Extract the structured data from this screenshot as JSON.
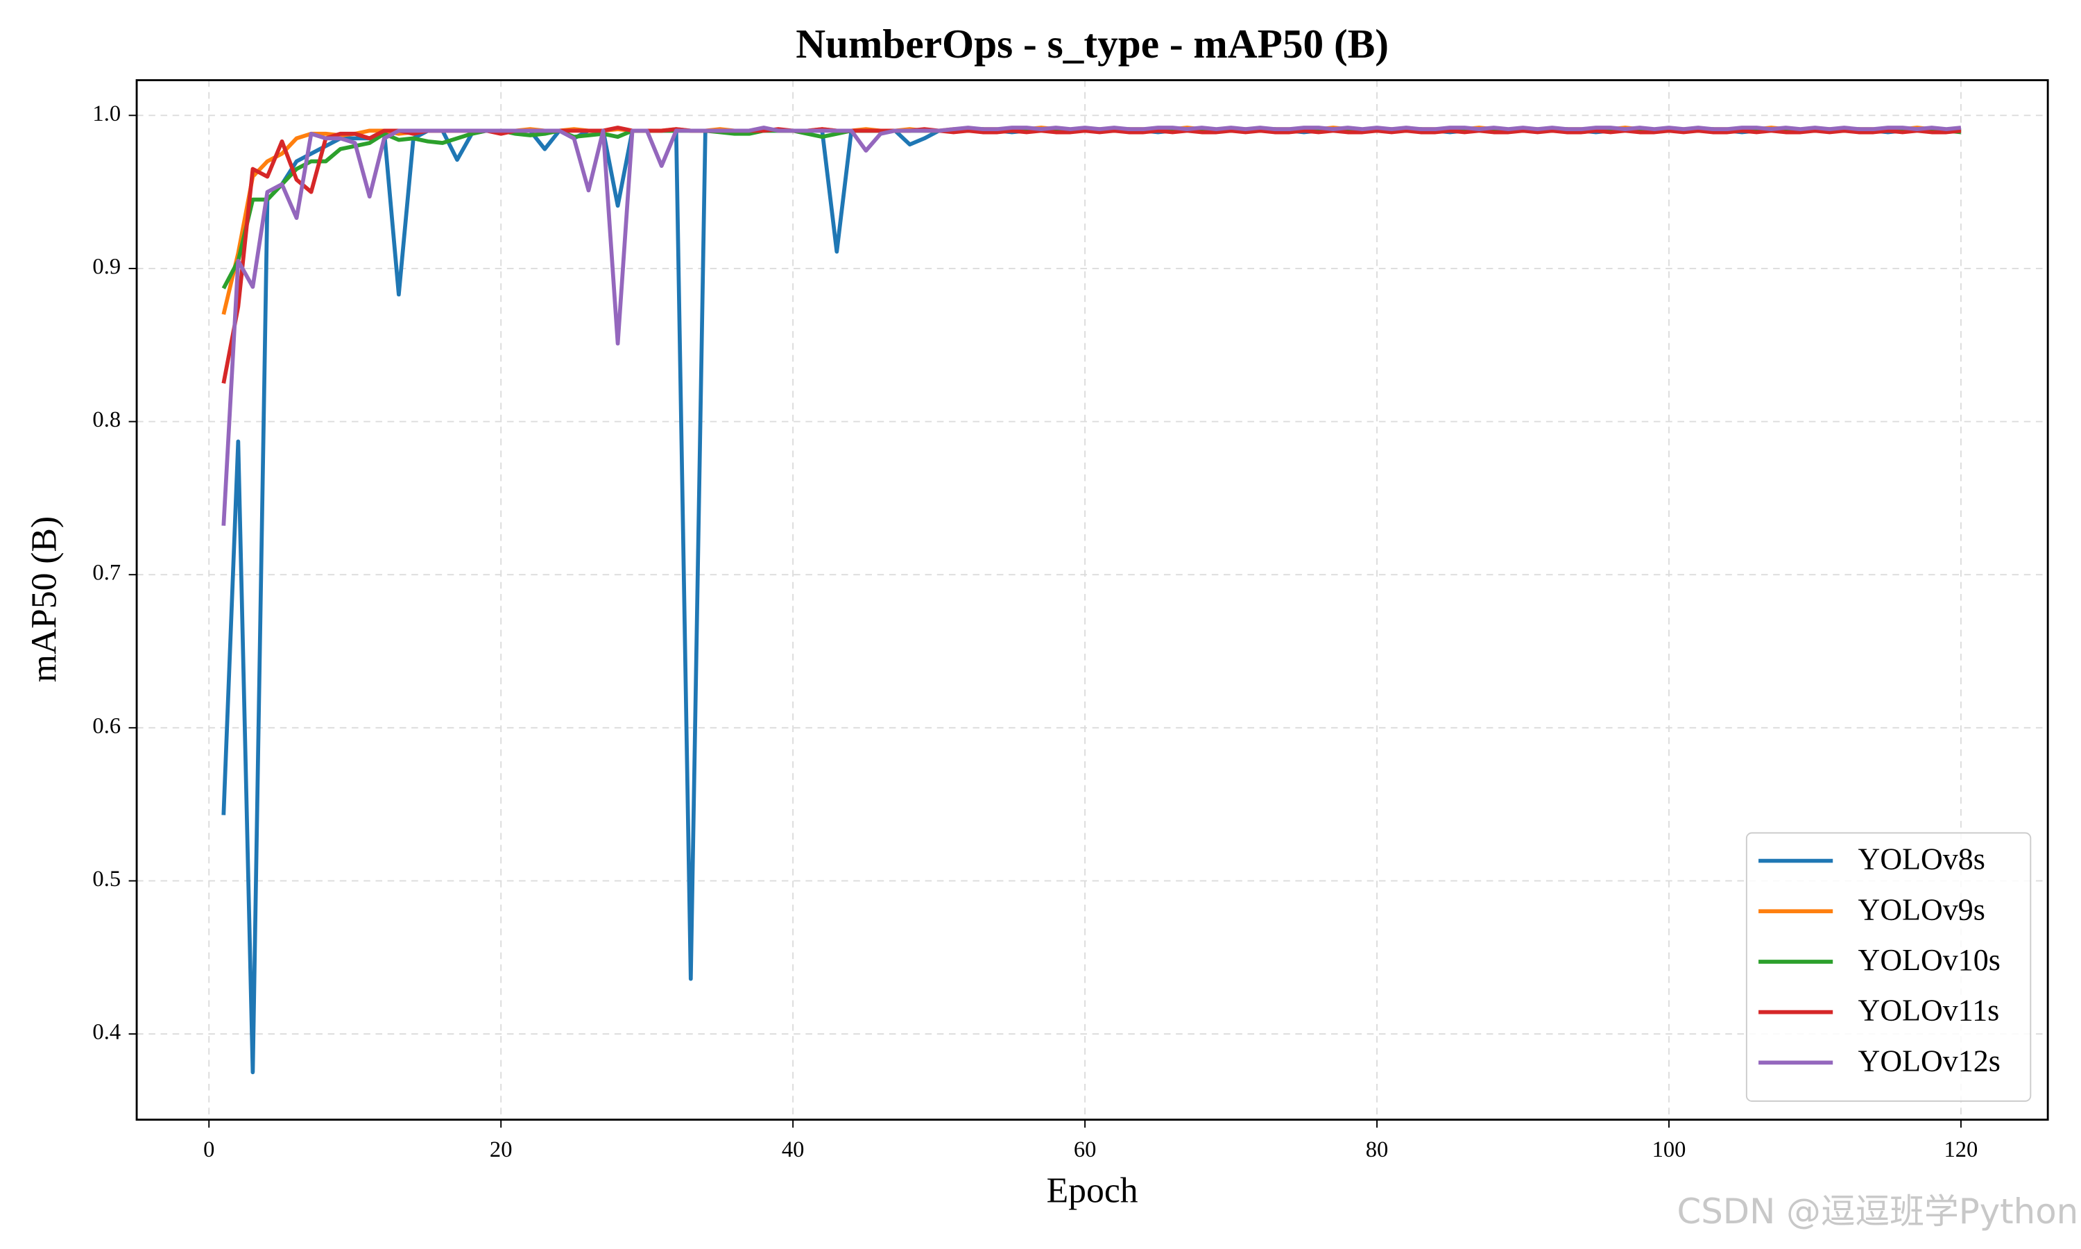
{
  "chart_data": {
    "type": "line",
    "title": "NumberOps - s_type - mAP50 (B)",
    "xlabel": "Epoch",
    "ylabel": "mAP50 (B)",
    "xlim": [
      -4.95,
      125.95
    ],
    "ylim": [
      0.344,
      1.023
    ],
    "xticks": [
      0,
      20,
      40,
      60,
      80,
      100,
      120
    ],
    "yticks": [
      0.4,
      0.5,
      0.6,
      0.7,
      0.8,
      0.9,
      {
        "value": 1,
        "label": "1.0"
      }
    ],
    "grid": true,
    "legend": "lower right",
    "x": [
      1,
      2,
      3,
      4,
      5,
      6,
      7,
      8,
      9,
      10,
      11,
      12,
      13,
      14,
      15,
      16,
      17,
      18,
      19,
      20,
      21,
      22,
      23,
      24,
      25,
      26,
      27,
      28,
      29,
      30,
      31,
      32,
      33,
      34,
      35,
      36,
      37,
      38,
      39,
      40,
      41,
      42,
      43,
      44,
      45,
      46,
      47,
      48,
      49,
      50,
      51,
      52,
      53,
      54,
      55,
      56,
      57,
      58,
      59,
      60,
      61,
      62,
      63,
      64,
      65,
      66,
      67,
      68,
      69,
      70,
      71,
      72,
      73,
      74,
      75,
      76,
      77,
      78,
      79,
      80,
      81,
      82,
      83,
      84,
      85,
      86,
      87,
      88,
      89,
      90,
      91,
      92,
      93,
      94,
      95,
      96,
      97,
      98,
      99,
      100,
      101,
      102,
      103,
      104,
      105,
      106,
      107,
      108,
      109,
      110,
      111,
      112,
      113,
      114,
      115,
      116,
      117,
      118,
      119,
      120
    ],
    "series": [
      {
        "name": "YOLOv8s",
        "color": "#1f77b4",
        "values": [
          0.543,
          0.787,
          0.375,
          0.945,
          0.955,
          0.97,
          0.975,
          0.98,
          0.985,
          0.985,
          0.985,
          0.99,
          0.883,
          0.985,
          0.99,
          0.99,
          0.971,
          0.988,
          0.99,
          0.99,
          0.99,
          0.99,
          0.978,
          0.99,
          0.985,
          0.99,
          0.99,
          0.941,
          0.99,
          0.99,
          0.99,
          0.99,
          0.436,
          0.99,
          0.99,
          0.99,
          0.99,
          0.99,
          0.99,
          0.99,
          0.99,
          0.99,
          0.911,
          0.99,
          0.99,
          0.99,
          0.99,
          0.981,
          0.985,
          0.99,
          0.99,
          0.991,
          0.99,
          0.99,
          0.989,
          0.99,
          0.991,
          0.99,
          0.99,
          0.99,
          0.99,
          0.991,
          0.99,
          0.99,
          0.989,
          0.99,
          0.991,
          0.99,
          0.99,
          0.99,
          0.99,
          0.991,
          0.99,
          0.99,
          0.989,
          0.99,
          0.991,
          0.99,
          0.99,
          0.99,
          0.99,
          0.991,
          0.99,
          0.99,
          0.989,
          0.99,
          0.991,
          0.99,
          0.99,
          0.99,
          0.99,
          0.991,
          0.99,
          0.99,
          0.989,
          0.99,
          0.991,
          0.99,
          0.99,
          0.99,
          0.99,
          0.991,
          0.99,
          0.99,
          0.989,
          0.99,
          0.991,
          0.99,
          0.99,
          0.99,
          0.99,
          0.991,
          0.99,
          0.99,
          0.989,
          0.99,
          0.991,
          0.99,
          0.99,
          0.99
        ]
      },
      {
        "name": "YOLOv9s",
        "color": "#ff7f0e",
        "values": [
          0.87,
          0.91,
          0.96,
          0.97,
          0.975,
          0.985,
          0.988,
          0.988,
          0.987,
          0.988,
          0.99,
          0.99,
          0.988,
          0.989,
          0.99,
          0.99,
          0.99,
          0.99,
          0.99,
          0.99,
          0.99,
          0.991,
          0.99,
          0.99,
          0.991,
          0.99,
          0.99,
          0.991,
          0.99,
          0.99,
          0.99,
          0.991,
          0.99,
          0.99,
          0.991,
          0.99,
          0.99,
          0.991,
          0.99,
          0.99,
          0.99,
          0.991,
          0.99,
          0.99,
          0.991,
          0.99,
          0.99,
          0.991,
          0.99,
          0.99,
          0.991,
          0.99,
          0.991,
          0.991,
          0.99,
          0.991,
          0.992,
          0.991,
          0.99,
          0.991,
          0.991,
          0.99,
          0.991,
          0.991,
          0.99,
          0.991,
          0.992,
          0.991,
          0.99,
          0.991,
          0.991,
          0.99,
          0.991,
          0.991,
          0.99,
          0.991,
          0.992,
          0.991,
          0.99,
          0.991,
          0.991,
          0.99,
          0.991,
          0.991,
          0.99,
          0.991,
          0.992,
          0.991,
          0.99,
          0.991,
          0.991,
          0.99,
          0.991,
          0.991,
          0.99,
          0.991,
          0.992,
          0.991,
          0.99,
          0.991,
          0.991,
          0.99,
          0.991,
          0.991,
          0.99,
          0.991,
          0.992,
          0.991,
          0.99,
          0.991,
          0.991,
          0.99,
          0.991,
          0.991,
          0.99,
          0.991,
          0.992,
          0.991,
          0.99,
          0.991
        ]
      },
      {
        "name": "YOLOv10s",
        "color": "#2ca02c",
        "values": [
          0.887,
          0.905,
          0.945,
          0.945,
          0.955,
          0.965,
          0.97,
          0.97,
          0.978,
          0.98,
          0.982,
          0.988,
          0.984,
          0.985,
          0.983,
          0.982,
          0.985,
          0.988,
          0.99,
          0.99,
          0.988,
          0.987,
          0.988,
          0.99,
          0.986,
          0.987,
          0.988,
          0.986,
          0.99,
          0.99,
          0.99,
          0.99,
          0.99,
          0.99,
          0.989,
          0.988,
          0.988,
          0.99,
          0.99,
          0.99,
          0.988,
          0.986,
          0.988,
          0.99,
          0.99,
          0.99,
          0.99,
          0.99,
          0.99,
          0.99,
          0.99,
          0.99,
          0.991,
          0.99,
          0.99,
          0.99,
          0.991,
          0.99,
          0.99,
          0.99,
          0.99,
          0.99,
          0.991,
          0.99,
          0.99,
          0.99,
          0.991,
          0.99,
          0.99,
          0.99,
          0.99,
          0.99,
          0.991,
          0.99,
          0.99,
          0.99,
          0.991,
          0.99,
          0.99,
          0.99,
          0.99,
          0.99,
          0.991,
          0.99,
          0.99,
          0.99,
          0.991,
          0.99,
          0.99,
          0.99,
          0.99,
          0.99,
          0.991,
          0.99,
          0.99,
          0.99,
          0.991,
          0.99,
          0.99,
          0.99,
          0.99,
          0.99,
          0.991,
          0.99,
          0.99,
          0.99,
          0.991,
          0.99,
          0.99,
          0.99,
          0.99,
          0.99,
          0.991,
          0.99,
          0.99,
          0.99,
          0.991,
          0.99,
          0.99,
          0.989
        ]
      },
      {
        "name": "YOLOv11s",
        "color": "#d62728",
        "values": [
          0.825,
          0.875,
          0.965,
          0.96,
          0.983,
          0.958,
          0.95,
          0.985,
          0.988,
          0.988,
          0.985,
          0.99,
          0.99,
          0.988,
          0.99,
          0.99,
          0.99,
          0.99,
          0.99,
          0.988,
          0.99,
          0.99,
          0.99,
          0.99,
          0.99,
          0.99,
          0.99,
          0.992,
          0.99,
          0.99,
          0.99,
          0.991,
          0.99,
          0.99,
          0.99,
          0.99,
          0.99,
          0.99,
          0.991,
          0.99,
          0.99,
          0.991,
          0.99,
          0.99,
          0.99,
          0.99,
          0.99,
          0.99,
          0.991,
          0.99,
          0.989,
          0.99,
          0.989,
          0.989,
          0.99,
          0.989,
          0.99,
          0.989,
          0.989,
          0.99,
          0.989,
          0.99,
          0.989,
          0.989,
          0.99,
          0.989,
          0.99,
          0.989,
          0.989,
          0.99,
          0.989,
          0.99,
          0.989,
          0.989,
          0.99,
          0.989,
          0.99,
          0.989,
          0.989,
          0.99,
          0.989,
          0.99,
          0.989,
          0.989,
          0.99,
          0.989,
          0.99,
          0.989,
          0.989,
          0.99,
          0.989,
          0.99,
          0.989,
          0.989,
          0.99,
          0.989,
          0.99,
          0.989,
          0.989,
          0.99,
          0.989,
          0.99,
          0.989,
          0.989,
          0.99,
          0.989,
          0.99,
          0.989,
          0.989,
          0.99,
          0.989,
          0.99,
          0.989,
          0.989,
          0.99,
          0.989,
          0.99,
          0.989,
          0.989,
          0.99
        ]
      },
      {
        "name": "YOLOv12s",
        "color": "#9467bd",
        "values": [
          0.732,
          0.905,
          0.888,
          0.95,
          0.955,
          0.933,
          0.988,
          0.985,
          0.985,
          0.982,
          0.947,
          0.985,
          0.99,
          0.99,
          0.99,
          0.99,
          0.99,
          0.99,
          0.99,
          0.99,
          0.99,
          0.99,
          0.99,
          0.99,
          0.985,
          0.951,
          0.99,
          0.851,
          0.99,
          0.99,
          0.967,
          0.99,
          0.99,
          0.99,
          0.99,
          0.99,
          0.99,
          0.992,
          0.99,
          0.99,
          0.99,
          0.99,
          0.99,
          0.99,
          0.977,
          0.988,
          0.99,
          0.99,
          0.99,
          0.99,
          0.991,
          0.992,
          0.991,
          0.991,
          0.992,
          0.992,
          0.991,
          0.992,
          0.991,
          0.992,
          0.991,
          0.992,
          0.991,
          0.991,
          0.992,
          0.992,
          0.991,
          0.992,
          0.991,
          0.992,
          0.991,
          0.992,
          0.991,
          0.991,
          0.992,
          0.992,
          0.991,
          0.992,
          0.991,
          0.992,
          0.991,
          0.992,
          0.991,
          0.991,
          0.992,
          0.992,
          0.991,
          0.992,
          0.991,
          0.992,
          0.991,
          0.992,
          0.991,
          0.991,
          0.992,
          0.992,
          0.991,
          0.992,
          0.991,
          0.992,
          0.991,
          0.992,
          0.991,
          0.991,
          0.992,
          0.992,
          0.991,
          0.992,
          0.991,
          0.992,
          0.991,
          0.992,
          0.991,
          0.991,
          0.992,
          0.992,
          0.991,
          0.992,
          0.991,
          0.992
        ]
      }
    ]
  },
  "watermark": "CSDN @逗逗班学Python"
}
